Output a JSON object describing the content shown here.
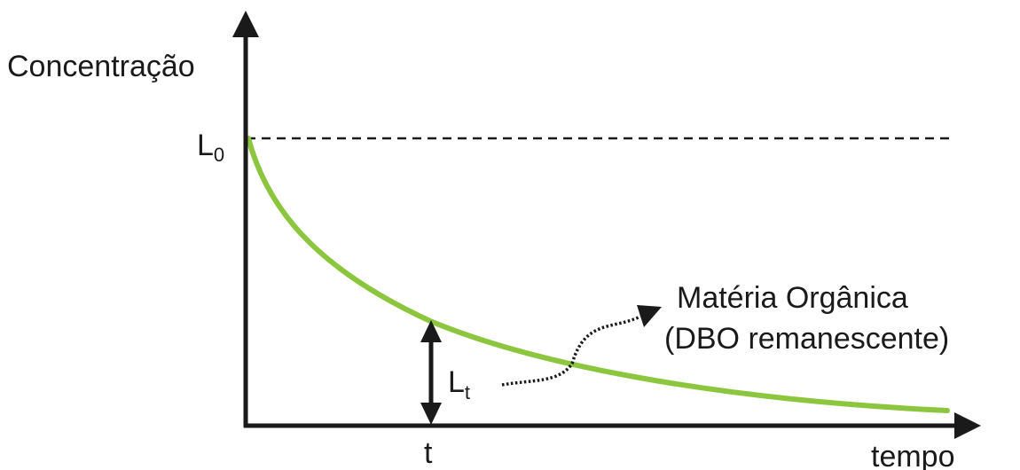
{
  "diagram": {
    "y_axis_label": "Concentração",
    "x_axis_label": "tempo",
    "initial_level": {
      "symbol": "L",
      "subscript": "0"
    },
    "remaining_level": {
      "symbol": "L",
      "subscript": "t"
    },
    "time_marker": "t",
    "annotation": {
      "line1": "Matéria Orgânica",
      "line2": "(DBO remanescente)"
    },
    "colors": {
      "curve": "#8cc63f",
      "axes": "#1a1a1a",
      "dashed_line": "#1a1a1a"
    }
  }
}
